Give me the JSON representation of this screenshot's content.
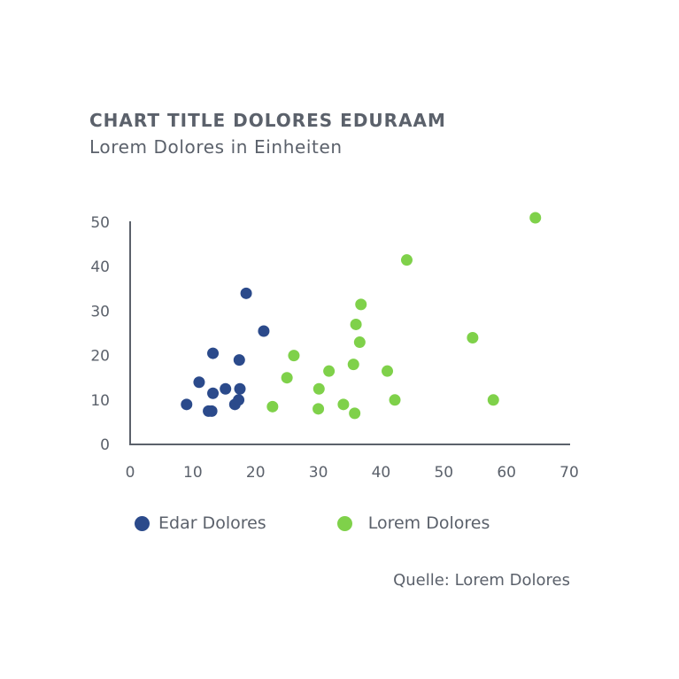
{
  "chart_data": {
    "type": "scatter",
    "title": "CHART TITLE DOLORES EDURAAM",
    "subtitle": "Lorem Dolores in Einheiten",
    "xlim": [
      0,
      70
    ],
    "ylim": [
      0,
      50
    ],
    "x_ticks": [
      "0",
      "10",
      "20",
      "30",
      "40",
      "50",
      "60",
      "70"
    ],
    "y_ticks": [
      "0",
      "10",
      "20",
      "30",
      "40",
      "50"
    ],
    "grid": false,
    "legend_position": "bottom-left",
    "series": [
      {
        "name": "Edar Dolores",
        "color": "#2b4a8b",
        "points": [
          {
            "x": 9,
            "y": 9
          },
          {
            "x": 11,
            "y": 14
          },
          {
            "x": 12.5,
            "y": 7.5
          },
          {
            "x": 13,
            "y": 7.5
          },
          {
            "x": 13.2,
            "y": 11.5
          },
          {
            "x": 13.2,
            "y": 20.5
          },
          {
            "x": 15.2,
            "y": 12.5
          },
          {
            "x": 16.7,
            "y": 9
          },
          {
            "x": 17.3,
            "y": 10
          },
          {
            "x": 17.4,
            "y": 19
          },
          {
            "x": 17.5,
            "y": 12.5
          },
          {
            "x": 18.5,
            "y": 34
          },
          {
            "x": 21.3,
            "y": 25.5
          }
        ]
      },
      {
        "name": "Lorem Dolores",
        "color": "#7fd14a",
        "points": [
          {
            "x": 22.7,
            "y": 8.5
          },
          {
            "x": 25,
            "y": 15
          },
          {
            "x": 26.1,
            "y": 20
          },
          {
            "x": 30,
            "y": 8
          },
          {
            "x": 30.1,
            "y": 12.5
          },
          {
            "x": 31.7,
            "y": 16.5
          },
          {
            "x": 34,
            "y": 9
          },
          {
            "x": 35.6,
            "y": 18
          },
          {
            "x": 35.8,
            "y": 7
          },
          {
            "x": 36,
            "y": 27
          },
          {
            "x": 36.6,
            "y": 23
          },
          {
            "x": 36.8,
            "y": 31.5
          },
          {
            "x": 41,
            "y": 16.5
          },
          {
            "x": 42.2,
            "y": 10
          },
          {
            "x": 44.1,
            "y": 41.5
          },
          {
            "x": 54.6,
            "y": 24
          },
          {
            "x": 57.9,
            "y": 10
          },
          {
            "x": 64.6,
            "y": 51
          }
        ]
      }
    ]
  },
  "legend": {
    "items": [
      "Edar Dolores",
      "Lorem Dolores"
    ]
  },
  "source": "Quelle: Lorem Dolores"
}
